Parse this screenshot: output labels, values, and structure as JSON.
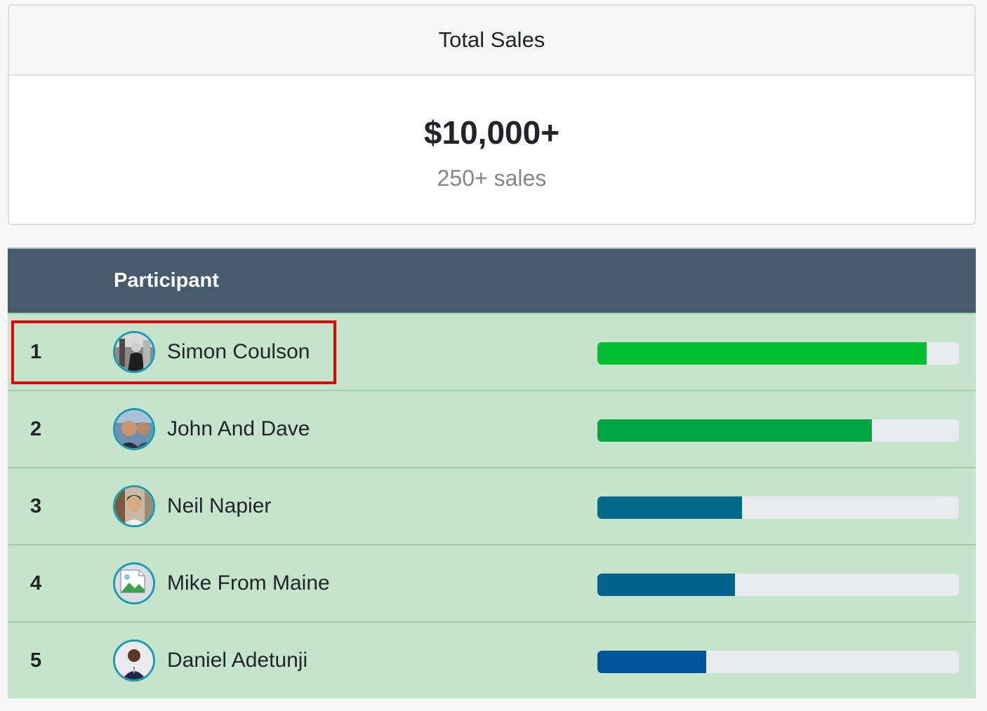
{
  "summary": {
    "header": "Total Sales",
    "amount": "$10,000+",
    "subtext": "250+ sales"
  },
  "table": {
    "columns": {
      "rank": "",
      "participant": "Participant"
    },
    "rows": [
      {
        "rank": "1",
        "name": "Simon Coulson",
        "avatar_icon": "photo-avatar-icon",
        "progress": 0.91,
        "bar_color": "#00bf30"
      },
      {
        "rank": "2",
        "name": "John And Dave",
        "avatar_icon": "photo-avatar-icon",
        "progress": 0.76,
        "bar_color": "#00a544"
      },
      {
        "rank": "3",
        "name": "Neil Napier",
        "avatar_icon": "photo-avatar-icon",
        "progress": 0.4,
        "bar_color": "#006a8a"
      },
      {
        "rank": "4",
        "name": "Mike From Maine",
        "avatar_icon": "broken-image-icon",
        "progress": 0.38,
        "bar_color": "#00628c"
      },
      {
        "rank": "5",
        "name": "Daniel Adetunji",
        "avatar_icon": "photo-avatar-icon",
        "progress": 0.3,
        "bar_color": "#005598"
      }
    ]
  },
  "colors": {
    "header_bg": "#465b6e",
    "row_bg": "#c4e5cb",
    "avatar_border": "#1e9bb0",
    "highlight": "#e40000"
  }
}
